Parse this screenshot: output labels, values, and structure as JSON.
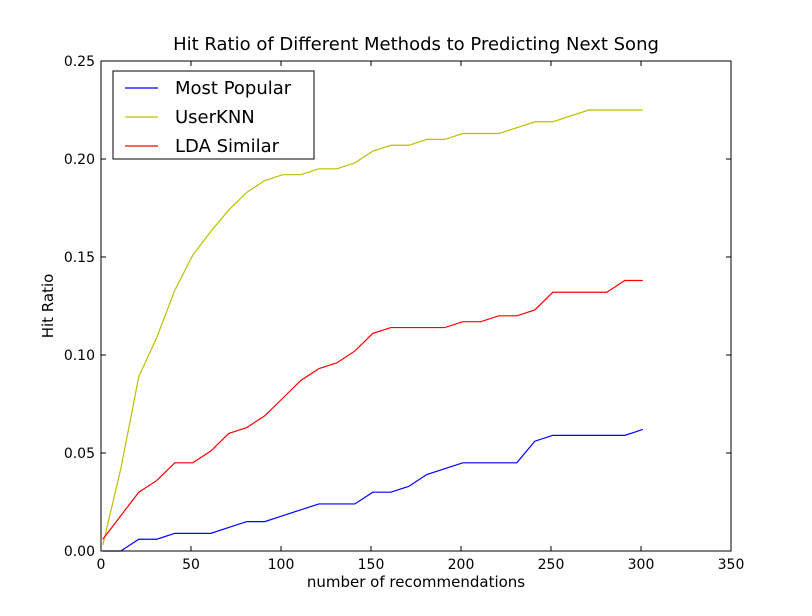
{
  "chart_data": {
    "type": "line",
    "title": "Hit Ratio of Different Methods to Predicting Next Song",
    "xlabel": "number of recommendations",
    "ylabel": "Hit Ratio",
    "xlim": [
      0,
      350
    ],
    "ylim": [
      0,
      0.25
    ],
    "xticks": [
      0,
      50,
      100,
      150,
      200,
      250,
      300,
      350
    ],
    "yticks": [
      0.0,
      0.05,
      0.1,
      0.15,
      0.2,
      0.25
    ],
    "xtick_labels": [
      "0",
      "50",
      "100",
      "150",
      "200",
      "250",
      "300",
      "350"
    ],
    "ytick_labels": [
      "0.00",
      "0.05",
      "0.10",
      "0.15",
      "0.20",
      "0.25"
    ],
    "grid": false,
    "legend_position": "upper-left",
    "x": [
      1,
      11,
      21,
      31,
      41,
      51,
      61,
      71,
      81,
      91,
      101,
      111,
      121,
      131,
      141,
      151,
      161,
      171,
      181,
      191,
      201,
      211,
      221,
      231,
      241,
      251,
      261,
      271,
      281,
      291,
      301
    ],
    "series": [
      {
        "name": "Most Popular",
        "color": "#0000ff",
        "values": [
          0.0,
          0.0,
          0.006,
          0.006,
          0.009,
          0.009,
          0.009,
          0.012,
          0.015,
          0.015,
          0.018,
          0.021,
          0.024,
          0.024,
          0.024,
          0.03,
          0.03,
          0.033,
          0.039,
          0.042,
          0.045,
          0.045,
          0.045,
          0.045,
          0.056,
          0.059,
          0.059,
          0.059,
          0.059,
          0.059,
          0.062
        ]
      },
      {
        "name": "UserKNN",
        "color": "#bfbf00",
        "values": [
          0.003,
          0.042,
          0.089,
          0.109,
          0.133,
          0.151,
          0.163,
          0.174,
          0.183,
          0.189,
          0.192,
          0.192,
          0.195,
          0.195,
          0.198,
          0.204,
          0.207,
          0.207,
          0.21,
          0.21,
          0.213,
          0.213,
          0.213,
          0.216,
          0.219,
          0.219,
          0.222,
          0.225,
          0.225,
          0.225,
          0.225
        ]
      },
      {
        "name": "LDA Similar",
        "color": "#ff0000",
        "values": [
          0.006,
          0.018,
          0.03,
          0.036,
          0.045,
          0.045,
          0.051,
          0.06,
          0.063,
          0.069,
          0.078,
          0.087,
          0.093,
          0.096,
          0.102,
          0.111,
          0.114,
          0.114,
          0.114,
          0.114,
          0.117,
          0.117,
          0.12,
          0.12,
          0.123,
          0.132,
          0.132,
          0.132,
          0.132,
          0.138,
          0.138
        ]
      }
    ]
  }
}
